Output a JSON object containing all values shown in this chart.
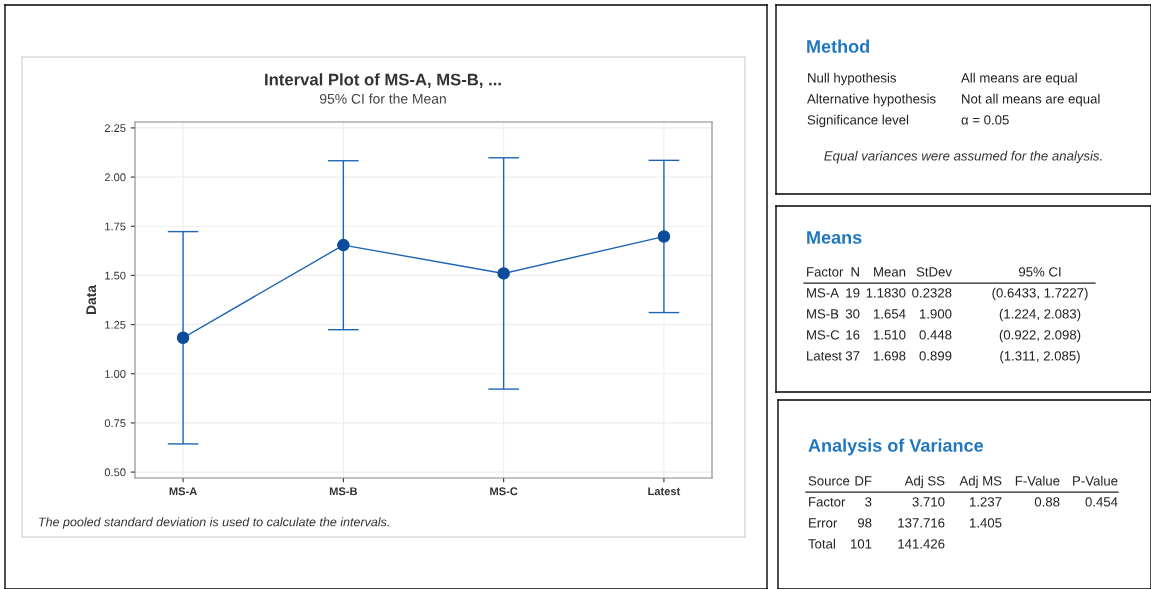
{
  "chart_data": [
    {
      "type": "line",
      "title": "Interval Plot of MS-A, MS-B, ...",
      "subtitle": "95% CI for the Mean",
      "ylabel": "Data",
      "categories": [
        "MS-A",
        "MS-B",
        "MS-C",
        "Latest"
      ],
      "series": [
        {
          "color": "#1e64b4",
          "values": [
            1.183,
            1.654,
            1.51,
            1.698
          ],
          "errors": [
            [
              0.6433,
              1.7227
            ],
            [
              1.224,
              2.083
            ],
            [
              0.922,
              2.098
            ],
            [
              1.311,
              2.085
            ]
          ]
        }
      ],
      "marker": "circle",
      "line_style": "solid",
      "grid": true,
      "ylim": [
        0.47,
        2.28
      ],
      "yticks": [
        {
          "value": 0.5,
          "label": "0.50"
        },
        {
          "value": 0.75,
          "label": "0.75"
        },
        {
          "value": 1.0,
          "label": "1.00"
        },
        {
          "value": 1.25,
          "label": "1.25"
        },
        {
          "value": 1.5,
          "label": "1.50"
        },
        {
          "value": 1.75,
          "label": "1.75"
        },
        {
          "value": 2.0,
          "label": "2.00"
        },
        {
          "value": 2.25,
          "label": "2.25"
        }
      ],
      "annotations": [
        "The pooled standard deviation is used to calculate the intervals."
      ]
    },
    {
      "type": "other",
      "title": "Method",
      "annotations": [
        "Null hypothesis\tAll means are equal",
        "Alternative hypothesis\tNot all means are equal",
        "Significance level\tα = 0.05",
        "Equal variances were assumed for the analysis."
      ]
    },
    {
      "type": "other",
      "title": "Means",
      "annotations": [
        "Factor\tN\tMean\tStDev\t95% CI",
        "MS-A\t19\t1.1830\t0.2328\t(0.6433, 1.7227)",
        "MS-B\t30\t1.654\t1.900\t(1.224, 2.083)",
        "MS-C\t16\t1.510\t0.448\t(0.922, 2.098)",
        "Latest\t37\t1.698\t0.899\t(1.311, 2.085)"
      ]
    },
    {
      "type": "other",
      "title": "Analysis of Variance",
      "annotations": [
        "Source\tDF\tAdj SS\tAdj MS\tF-Value\tP-Value",
        "Factor\t3\t3.710\t1.237\t0.88\t0.454",
        "Error\t98\t137.716\t1.405",
        "Total\t101\t141.426"
      ]
    }
  ]
}
